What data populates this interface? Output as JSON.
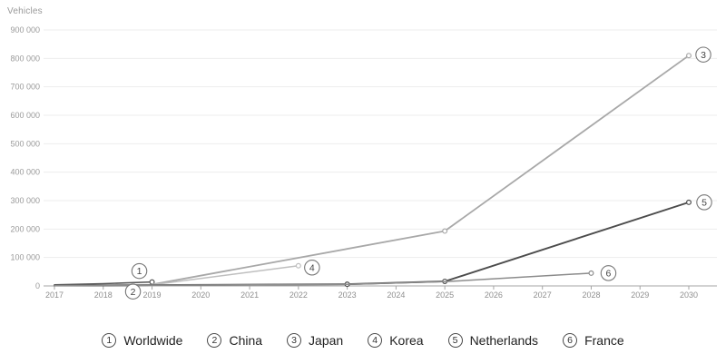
{
  "chart_data": {
    "type": "line",
    "ylabel": "Vehicles",
    "x_range": [
      2017,
      2030
    ],
    "y_range": [
      0,
      900000
    ],
    "grid": "horizontal",
    "x_ticks": [
      "2017",
      "2018",
      "2019",
      "2020",
      "2021",
      "2022",
      "2023",
      "2024",
      "2025",
      "2026",
      "2027",
      "2028",
      "2029",
      "2030"
    ],
    "y_ticks": [
      {
        "v": 0,
        "label": "0"
      },
      {
        "v": 100000,
        "label": "100 000"
      },
      {
        "v": 200000,
        "label": "200 000"
      },
      {
        "v": 300000,
        "label": "300 000"
      },
      {
        "v": 400000,
        "label": "400 000"
      },
      {
        "v": 500000,
        "label": "500 000"
      },
      {
        "v": 600000,
        "label": "600 000"
      },
      {
        "v": 700000,
        "label": "700 000"
      },
      {
        "v": 800000,
        "label": "800 000"
      },
      {
        "v": 900000,
        "label": "900 000"
      }
    ],
    "series": [
      {
        "num": "1",
        "name": "Worldwide",
        "color": "#565656",
        "width": 1.6,
        "points": [
          [
            2017,
            4000
          ],
          [
            2018,
            8000
          ],
          [
            2019,
            14000
          ]
        ],
        "markers": [
          2019
        ],
        "label_offset": [
          -14,
          -12
        ]
      },
      {
        "num": "2",
        "name": "China",
        "color": "#303030",
        "width": 1.6,
        "points": [
          [
            2017,
            1000
          ],
          [
            2018,
            1500
          ],
          [
            2019,
            2500
          ]
        ],
        "markers": [],
        "label_offset": [
          -21,
          7
        ]
      },
      {
        "num": "3",
        "name": "Japan",
        "color": "#a8a8a8",
        "width": 1.8,
        "points": [
          [
            2019,
            5000
          ],
          [
            2025,
            193000
          ],
          [
            2030,
            810000
          ]
        ],
        "markers": [
          2025,
          2030
        ],
        "label_offset": [
          16,
          -1
        ]
      },
      {
        "num": "4",
        "name": "Korea",
        "color": "#bfbfbf",
        "width": 1.5,
        "points": [
          [
            2019,
            4000
          ],
          [
            2022,
            71000
          ]
        ],
        "markers": [
          2022
        ],
        "label_offset": [
          15,
          2
        ]
      },
      {
        "num": "5",
        "name": "Netherlands",
        "color": "#4c4c4c",
        "width": 1.9,
        "points": [
          [
            2017,
            1500
          ],
          [
            2019,
            3000
          ],
          [
            2023,
            6000
          ],
          [
            2025,
            16000
          ],
          [
            2030,
            294000
          ]
        ],
        "markers": [
          2023,
          2025,
          2030
        ],
        "label_offset": [
          17,
          0
        ]
      },
      {
        "num": "6",
        "name": "France",
        "color": "#8c8c8c",
        "width": 1.5,
        "points": [
          [
            2017,
            1200
          ],
          [
            2019,
            2500
          ],
          [
            2023,
            5500
          ],
          [
            2025,
            15000
          ],
          [
            2028,
            45000
          ]
        ],
        "markers": [
          2028
        ],
        "label_offset": [
          19,
          0
        ]
      }
    ]
  },
  "legend": {
    "items": [
      {
        "num": "1",
        "label": "Worldwide"
      },
      {
        "num": "2",
        "label": "China"
      },
      {
        "num": "3",
        "label": "Japan"
      },
      {
        "num": "4",
        "label": "Korea"
      },
      {
        "num": "5",
        "label": "Netherlands"
      },
      {
        "num": "6",
        "label": "France"
      }
    ]
  }
}
